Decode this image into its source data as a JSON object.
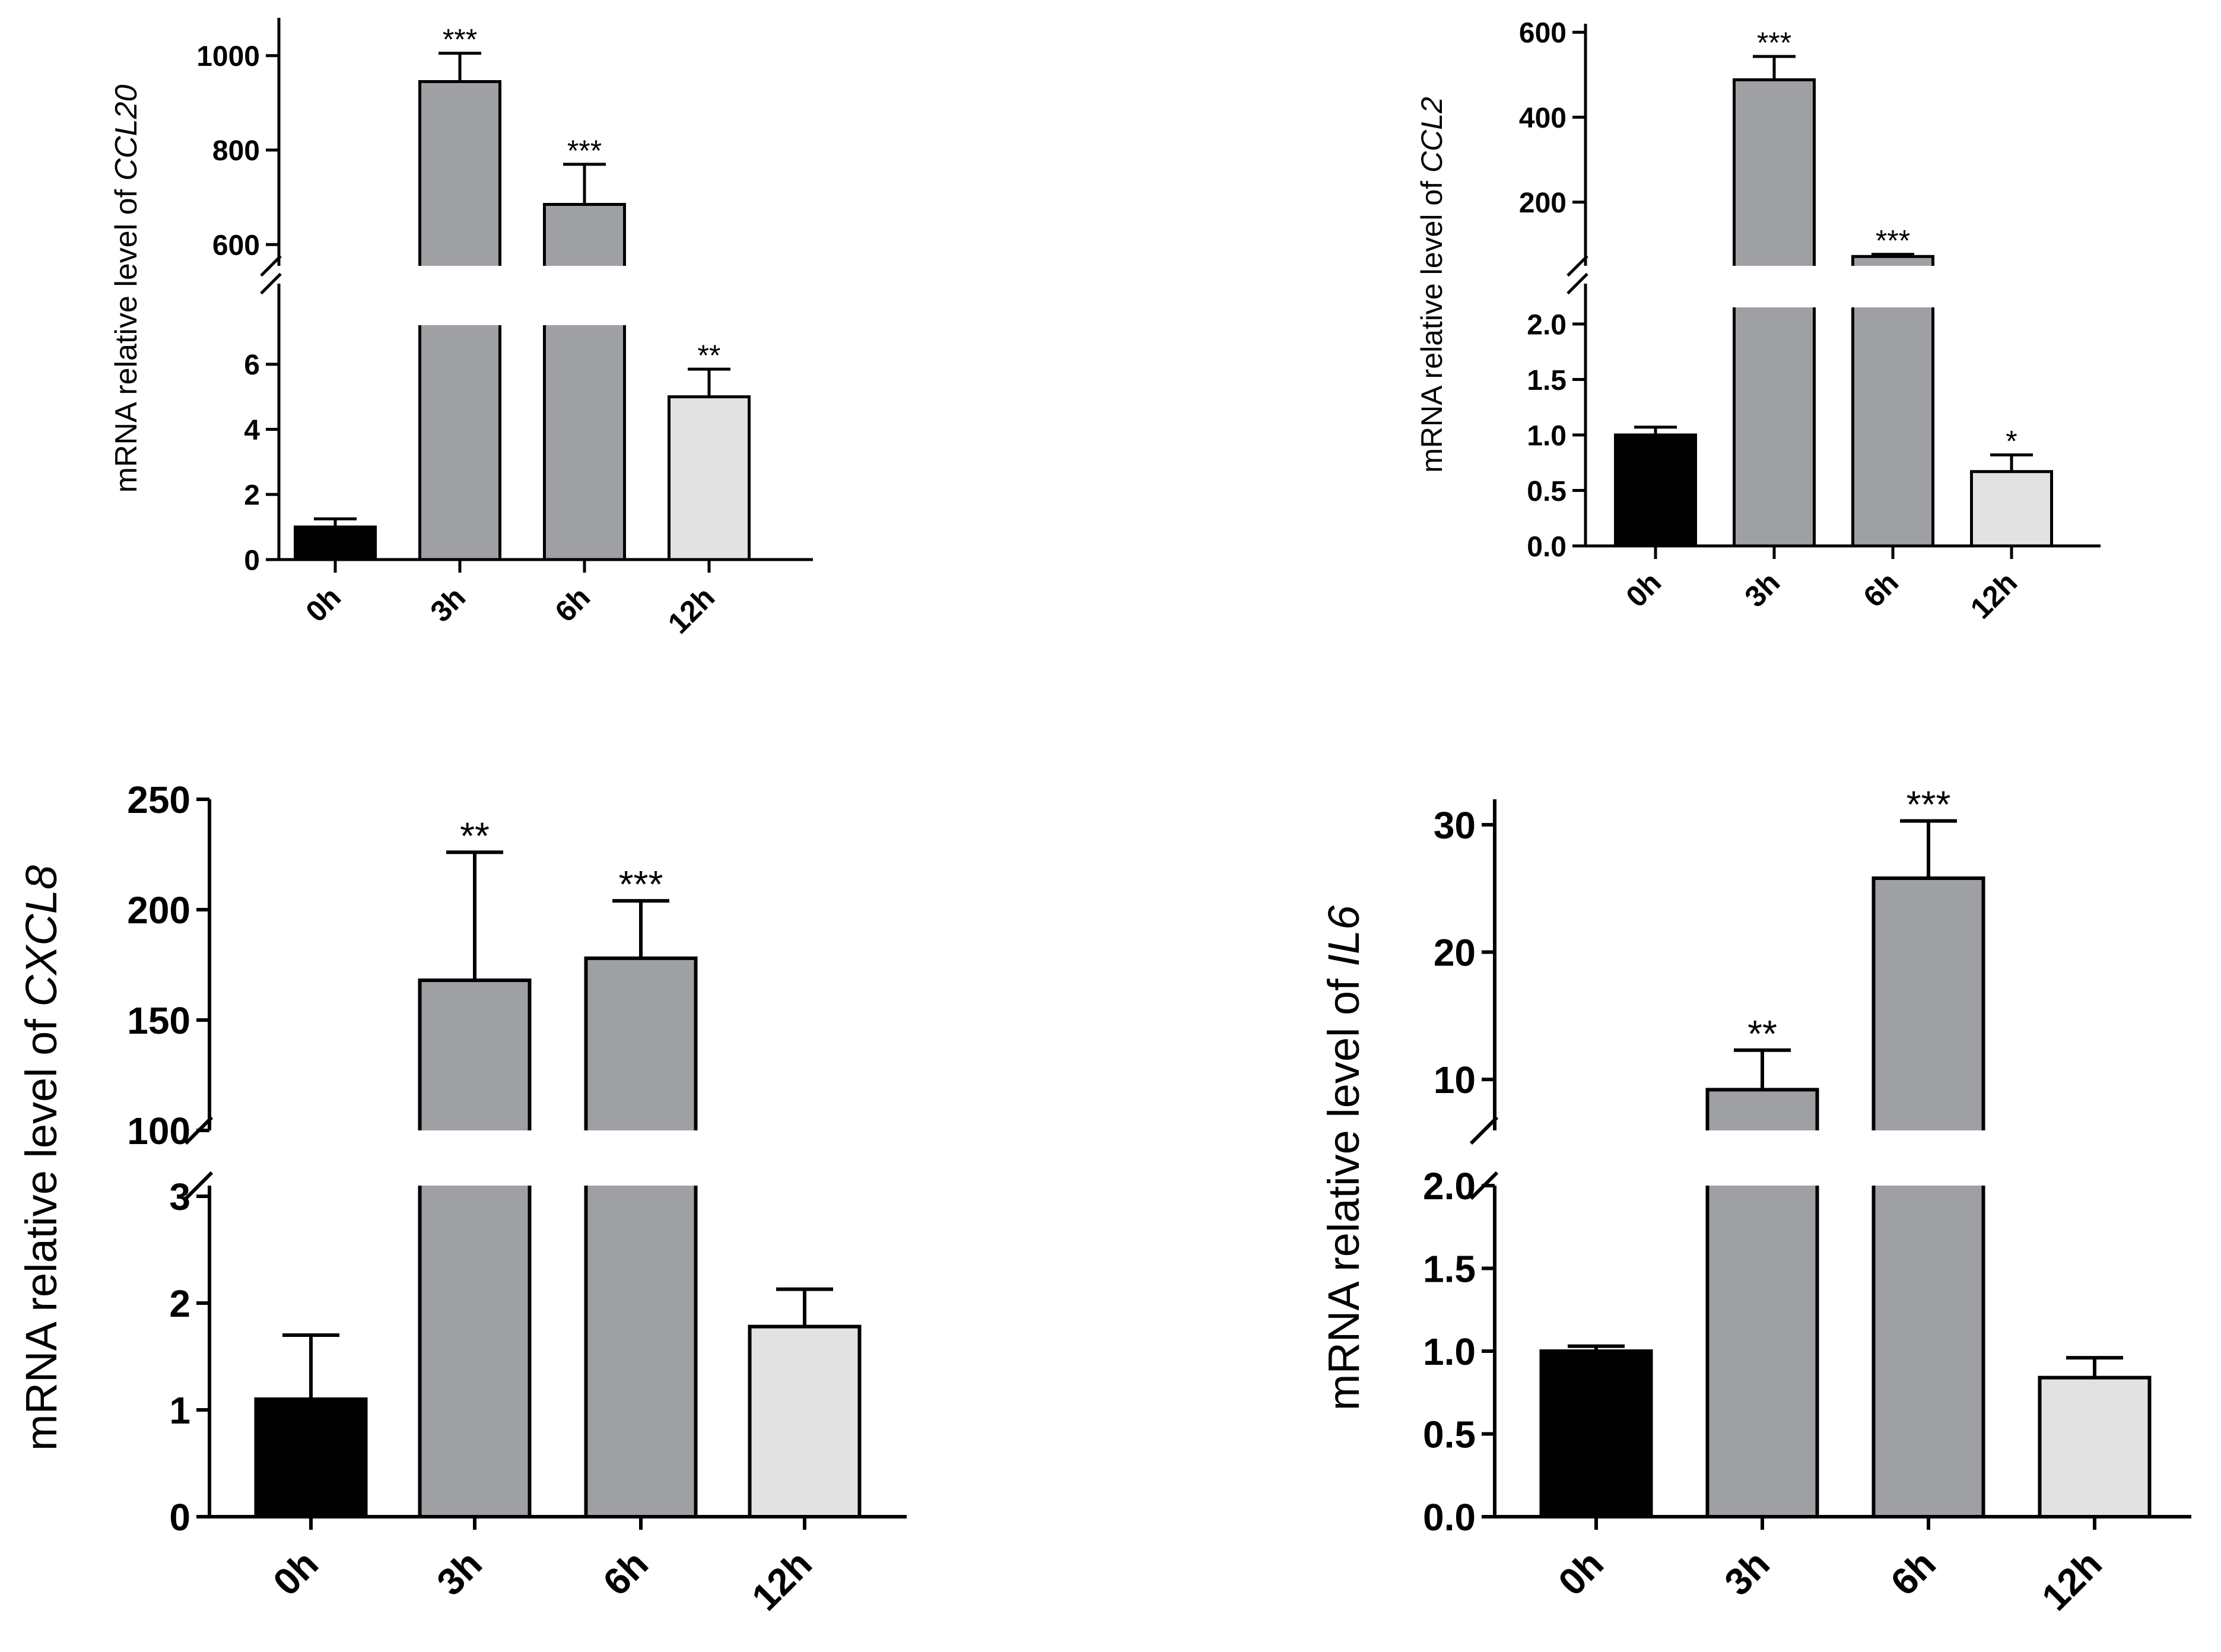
{
  "chart_data": [
    {
      "type": "bar",
      "panel": "top-left",
      "ylabel_prefix": "mRNA relative level of ",
      "gene": "CCL20",
      "categories": [
        "0h",
        "3h",
        "6h",
        "12h"
      ],
      "values": [
        1.0,
        945,
        685,
        5.0
      ],
      "errors": [
        0.25,
        60,
        85,
        0.85
      ],
      "significance": [
        "",
        "***",
        "***",
        "**"
      ],
      "colors": [
        "#000000",
        "#9fa0a4",
        "#9fa0a4",
        "#e2e2e2"
      ],
      "y_break": {
        "lower_range": [
          0,
          7.2
        ],
        "upper_range": [
          555,
          1080
        ],
        "lower_ticks": [
          "0",
          "2",
          "4",
          "6"
        ],
        "upper_ticks": [
          "600",
          "800",
          "1000"
        ]
      }
    },
    {
      "type": "bar",
      "panel": "top-right",
      "ylabel_prefix": "mRNA relative level of ",
      "gene": "CCL2",
      "categories": [
        "0h",
        "3h",
        "6h",
        "12h"
      ],
      "values": [
        1.0,
        488,
        72,
        0.67
      ],
      "errors": [
        0.07,
        55,
        5,
        0.15
      ],
      "significance": [
        "",
        "***",
        "***",
        "*"
      ],
      "colors": [
        "#000000",
        "#9fa0a4",
        "#9fa0a4",
        "#e2e2e2"
      ],
      "y_break": {
        "lower_range": [
          0,
          2.15
        ],
        "upper_range": [
          50,
          620
        ],
        "lower_ticks": [
          "0.0",
          "0.5",
          "1.0",
          "1.5",
          "2.0"
        ],
        "upper_ticks": [
          "200",
          "400",
          "600"
        ]
      }
    },
    {
      "type": "bar",
      "panel": "bottom-left",
      "ylabel_prefix": "mRNA relative level of ",
      "gene": "CXCL8",
      "categories": [
        "0h",
        "3h",
        "6h",
        "12h"
      ],
      "values": [
        1.1,
        168,
        178,
        1.78
      ],
      "errors": [
        0.6,
        58,
        26,
        0.35
      ],
      "significance": [
        "",
        "**",
        "***",
        ""
      ],
      "colors": [
        "#000000",
        "#9fa0a4",
        "#9fa0a4",
        "#e2e2e2"
      ],
      "y_break": {
        "lower_range": [
          0,
          3.1
        ],
        "upper_range": [
          100,
          250
        ],
        "lower_ticks": [
          "0",
          "1",
          "2",
          "3"
        ],
        "upper_ticks": [
          "100",
          "150",
          "200",
          "250"
        ]
      }
    },
    {
      "type": "bar",
      "panel": "bottom-right",
      "ylabel_prefix": "mRNA relative level of ",
      "gene": "IL6",
      "categories": [
        "0h",
        "3h",
        "6h",
        "12h"
      ],
      "values": [
        1.0,
        9.2,
        25.8,
        0.84
      ],
      "errors": [
        0.03,
        3.1,
        4.5,
        0.12
      ],
      "significance": [
        "",
        "**",
        "***",
        ""
      ],
      "colors": [
        "#000000",
        "#9fa0a4",
        "#9fa0a4",
        "#e2e2e2"
      ],
      "y_break": {
        "lower_range": [
          0,
          2.0
        ],
        "upper_range": [
          6.0,
          32.0
        ],
        "lower_ticks": [
          "0.0",
          "0.5",
          "1.0",
          "1.5",
          "2.0"
        ],
        "upper_ticks": [
          "10",
          "20",
          "30"
        ]
      }
    }
  ]
}
